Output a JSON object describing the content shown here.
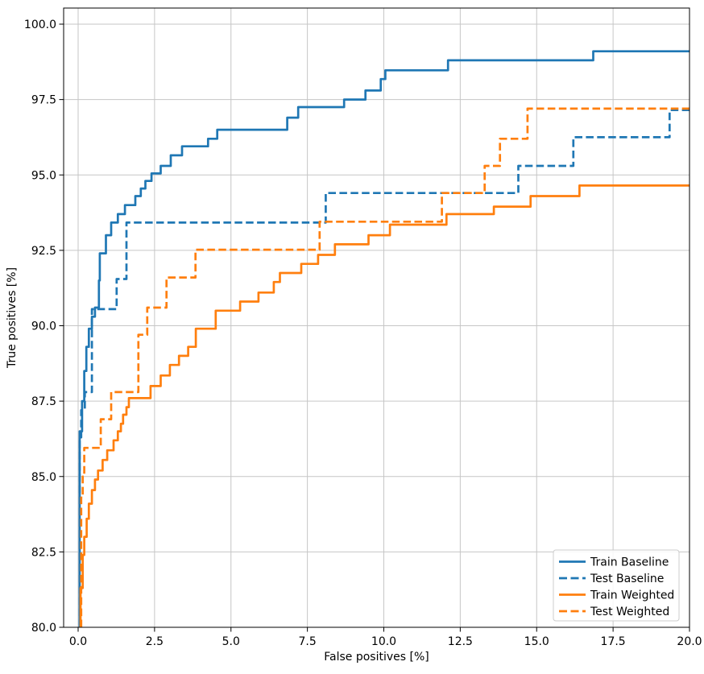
{
  "chart_data": {
    "type": "line",
    "subtype": "step-roc",
    "title": "",
    "xlabel": "False positives [%]",
    "ylabel": "True positives [%]",
    "xlim": [
      -0.47,
      20.0
    ],
    "ylim": [
      80.0,
      100.53
    ],
    "grid": true,
    "legend_position": "lower right",
    "xticks": [
      "0.0",
      "2.5",
      "5.0",
      "7.5",
      "10.0",
      "12.5",
      "15.0",
      "17.5",
      "20.0"
    ],
    "yticks": [
      "80.0",
      "82.5",
      "85.0",
      "87.5",
      "90.0",
      "92.5",
      "95.0",
      "97.5",
      "100.0"
    ],
    "xtick_values": [
      0.0,
      2.5,
      5.0,
      7.5,
      10.0,
      12.5,
      15.0,
      17.5,
      20.0
    ],
    "ytick_values": [
      80.0,
      82.5,
      85.0,
      87.5,
      90.0,
      92.5,
      95.0,
      97.5,
      100.0
    ],
    "colors": {
      "blue": "#1f77b4",
      "orange": "#ff7f0e"
    },
    "series": [
      {
        "name": "Train Baseline",
        "color": "#1f77b4",
        "style": "solid",
        "points": [
          [
            0.05,
            80
          ],
          [
            0.05,
            86.5
          ],
          [
            0.13,
            86.5
          ],
          [
            0.13,
            87.5
          ],
          [
            0.2,
            87.5
          ],
          [
            0.2,
            88.5
          ],
          [
            0.27,
            88.5
          ],
          [
            0.27,
            89.3
          ],
          [
            0.35,
            89.3
          ],
          [
            0.35,
            89.9
          ],
          [
            0.45,
            89.9
          ],
          [
            0.45,
            90.3
          ],
          [
            0.55,
            90.3
          ],
          [
            0.55,
            90.6
          ],
          [
            0.68,
            90.6
          ],
          [
            0.68,
            91.5
          ],
          [
            0.71,
            91.5
          ],
          [
            0.71,
            92.4
          ],
          [
            0.91,
            92.4
          ],
          [
            0.91,
            93.0
          ],
          [
            1.08,
            93.0
          ],
          [
            1.08,
            93.42
          ],
          [
            1.3,
            93.42
          ],
          [
            1.3,
            93.7
          ],
          [
            1.53,
            93.7
          ],
          [
            1.53,
            94.0
          ],
          [
            1.87,
            94.0
          ],
          [
            1.87,
            94.3
          ],
          [
            2.05,
            94.3
          ],
          [
            2.05,
            94.55
          ],
          [
            2.2,
            94.55
          ],
          [
            2.2,
            94.8
          ],
          [
            2.4,
            94.8
          ],
          [
            2.4,
            95.05
          ],
          [
            2.7,
            95.05
          ],
          [
            2.7,
            95.3
          ],
          [
            3.03,
            95.3
          ],
          [
            3.03,
            95.65
          ],
          [
            3.4,
            95.65
          ],
          [
            3.4,
            95.95
          ],
          [
            4.25,
            95.95
          ],
          [
            4.25,
            96.2
          ],
          [
            4.55,
            96.2
          ],
          [
            4.55,
            96.5
          ],
          [
            6.84,
            96.5
          ],
          [
            6.84,
            96.9
          ],
          [
            7.2,
            96.9
          ],
          [
            7.2,
            97.25
          ],
          [
            8.7,
            97.25
          ],
          [
            8.7,
            97.5
          ],
          [
            9.4,
            97.5
          ],
          [
            9.4,
            97.8
          ],
          [
            9.9,
            97.8
          ],
          [
            9.9,
            98.18
          ],
          [
            10.05,
            98.18
          ],
          [
            10.05,
            98.47
          ],
          [
            12.1,
            98.47
          ],
          [
            12.1,
            98.8
          ],
          [
            16.85,
            98.8
          ],
          [
            16.85,
            99.1
          ],
          [
            20,
            99.1
          ]
        ]
      },
      {
        "name": "Test Baseline",
        "color": "#1f77b4",
        "style": "dashed",
        "points": [
          [
            0.05,
            80
          ],
          [
            0.05,
            86.3
          ],
          [
            0.1,
            86.3
          ],
          [
            0.1,
            87.2
          ],
          [
            0.22,
            87.2
          ],
          [
            0.22,
            87.8
          ],
          [
            0.45,
            87.8
          ],
          [
            0.45,
            90.55
          ],
          [
            1.26,
            90.55
          ],
          [
            1.26,
            91.55
          ],
          [
            1.58,
            91.55
          ],
          [
            1.58,
            93.42
          ],
          [
            8.1,
            93.42
          ],
          [
            8.1,
            94.4
          ],
          [
            14.4,
            94.4
          ],
          [
            14.4,
            95.3
          ],
          [
            16.2,
            95.3
          ],
          [
            16.2,
            96.25
          ],
          [
            19.35,
            96.25
          ],
          [
            19.35,
            97.15
          ],
          [
            20,
            97.15
          ]
        ]
      },
      {
        "name": "Train Weighted",
        "color": "#ff7f0e",
        "style": "solid",
        "points": [
          [
            0.08,
            80
          ],
          [
            0.08,
            81.3
          ],
          [
            0.15,
            81.3
          ],
          [
            0.15,
            82.4
          ],
          [
            0.2,
            82.4
          ],
          [
            0.2,
            83.0
          ],
          [
            0.28,
            83.0
          ],
          [
            0.28,
            83.6
          ],
          [
            0.35,
            83.6
          ],
          [
            0.35,
            84.1
          ],
          [
            0.45,
            84.1
          ],
          [
            0.45,
            84.55
          ],
          [
            0.55,
            84.55
          ],
          [
            0.55,
            84.9
          ],
          [
            0.65,
            84.9
          ],
          [
            0.65,
            85.2
          ],
          [
            0.8,
            85.2
          ],
          [
            0.8,
            85.55
          ],
          [
            0.95,
            85.55
          ],
          [
            0.95,
            85.87
          ],
          [
            1.16,
            85.87
          ],
          [
            1.16,
            86.2
          ],
          [
            1.3,
            86.2
          ],
          [
            1.3,
            86.5
          ],
          [
            1.4,
            86.5
          ],
          [
            1.4,
            86.75
          ],
          [
            1.47,
            86.75
          ],
          [
            1.47,
            87.05
          ],
          [
            1.58,
            87.05
          ],
          [
            1.58,
            87.3
          ],
          [
            1.66,
            87.3
          ],
          [
            1.66,
            87.6
          ],
          [
            2.37,
            87.6
          ],
          [
            2.37,
            88.0
          ],
          [
            2.7,
            88.0
          ],
          [
            2.7,
            88.35
          ],
          [
            3.0,
            88.35
          ],
          [
            3.0,
            88.7
          ],
          [
            3.3,
            88.7
          ],
          [
            3.3,
            89.0
          ],
          [
            3.6,
            89.0
          ],
          [
            3.6,
            89.3
          ],
          [
            3.85,
            89.3
          ],
          [
            3.85,
            89.9
          ],
          [
            4.5,
            89.9
          ],
          [
            4.5,
            90.5
          ],
          [
            5.3,
            90.5
          ],
          [
            5.3,
            90.8
          ],
          [
            5.9,
            90.8
          ],
          [
            5.9,
            91.1
          ],
          [
            6.4,
            91.1
          ],
          [
            6.4,
            91.45
          ],
          [
            6.6,
            91.45
          ],
          [
            6.6,
            91.75
          ],
          [
            7.3,
            91.75
          ],
          [
            7.3,
            92.05
          ],
          [
            7.85,
            92.05
          ],
          [
            7.85,
            92.35
          ],
          [
            8.4,
            92.35
          ],
          [
            8.4,
            92.7
          ],
          [
            9.5,
            92.7
          ],
          [
            9.5,
            93.0
          ],
          [
            10.2,
            93.0
          ],
          [
            10.2,
            93.35
          ],
          [
            12.05,
            93.35
          ],
          [
            12.05,
            93.7
          ],
          [
            13.6,
            93.7
          ],
          [
            13.6,
            93.95
          ],
          [
            14.8,
            93.95
          ],
          [
            14.8,
            94.3
          ],
          [
            16.4,
            94.3
          ],
          [
            16.4,
            94.65
          ],
          [
            20,
            94.65
          ]
        ]
      },
      {
        "name": "Test Weighted",
        "color": "#ff7f0e",
        "style": "dashed",
        "points": [
          [
            0.1,
            80
          ],
          [
            0.1,
            84.3
          ],
          [
            0.15,
            84.3
          ],
          [
            0.15,
            85.0
          ],
          [
            0.2,
            85.0
          ],
          [
            0.2,
            85.95
          ],
          [
            0.74,
            85.95
          ],
          [
            0.74,
            86.9
          ],
          [
            1.08,
            86.9
          ],
          [
            1.08,
            87.8
          ],
          [
            1.97,
            87.8
          ],
          [
            1.97,
            89.7
          ],
          [
            2.26,
            89.7
          ],
          [
            2.26,
            90.6
          ],
          [
            2.89,
            90.6
          ],
          [
            2.89,
            91.6
          ],
          [
            3.84,
            91.6
          ],
          [
            3.84,
            92.52
          ],
          [
            7.9,
            92.52
          ],
          [
            7.9,
            93.45
          ],
          [
            11.9,
            93.45
          ],
          [
            11.9,
            94.4
          ],
          [
            13.3,
            94.4
          ],
          [
            13.3,
            95.3
          ],
          [
            13.8,
            95.3
          ],
          [
            13.8,
            96.2
          ],
          [
            14.7,
            96.2
          ],
          [
            14.7,
            97.2
          ],
          [
            20,
            97.2
          ]
        ]
      }
    ],
    "legend_entries": [
      "Train Baseline",
      "Test Baseline",
      "Train Weighted",
      "Test Weighted"
    ]
  },
  "style_colors": {
    "grid": "#c6c6c6",
    "spine": "#000000",
    "legend_border": "#cccccc",
    "legend_bg": "#ffffff"
  }
}
